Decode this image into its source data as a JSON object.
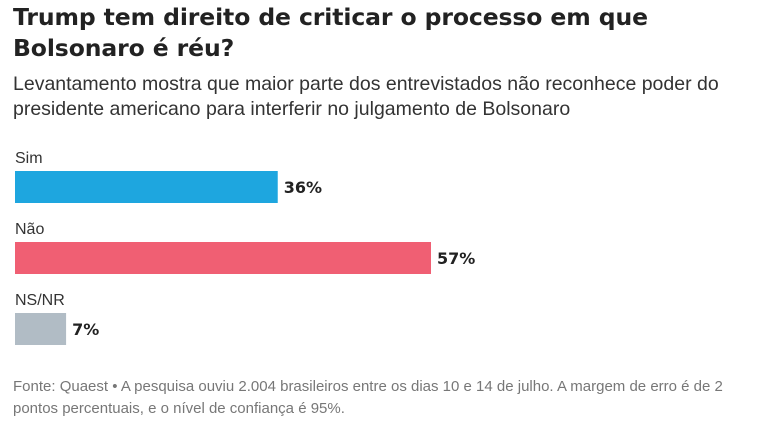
{
  "title": "Trump tem direito de criticar o processo em que Bolsonaro é réu?",
  "subtitle": "Levantamento mostra que maior parte dos entrevistados não reconhece poder do presidente americano para interferir no julgamento de Bolsonaro",
  "source": "Fonte: Quaest • A pesquisa ouviu 2.004 brasileiros entre os dias 10 e 14 de julho. A margem de erro é de 2 pontos percentuais, e o nível de confiança é 95%.",
  "chart_data": {
    "type": "bar",
    "orientation": "horizontal",
    "categories": [
      "Sim",
      "Não",
      "NS/NR"
    ],
    "values": [
      36,
      57,
      7
    ],
    "value_labels": [
      "36%",
      "57%",
      "7%"
    ],
    "colors": [
      "#1ea6df",
      "#f05f73",
      "#b1bcc5"
    ],
    "xlim": [
      0,
      100
    ],
    "grid": false,
    "legend": "none"
  }
}
